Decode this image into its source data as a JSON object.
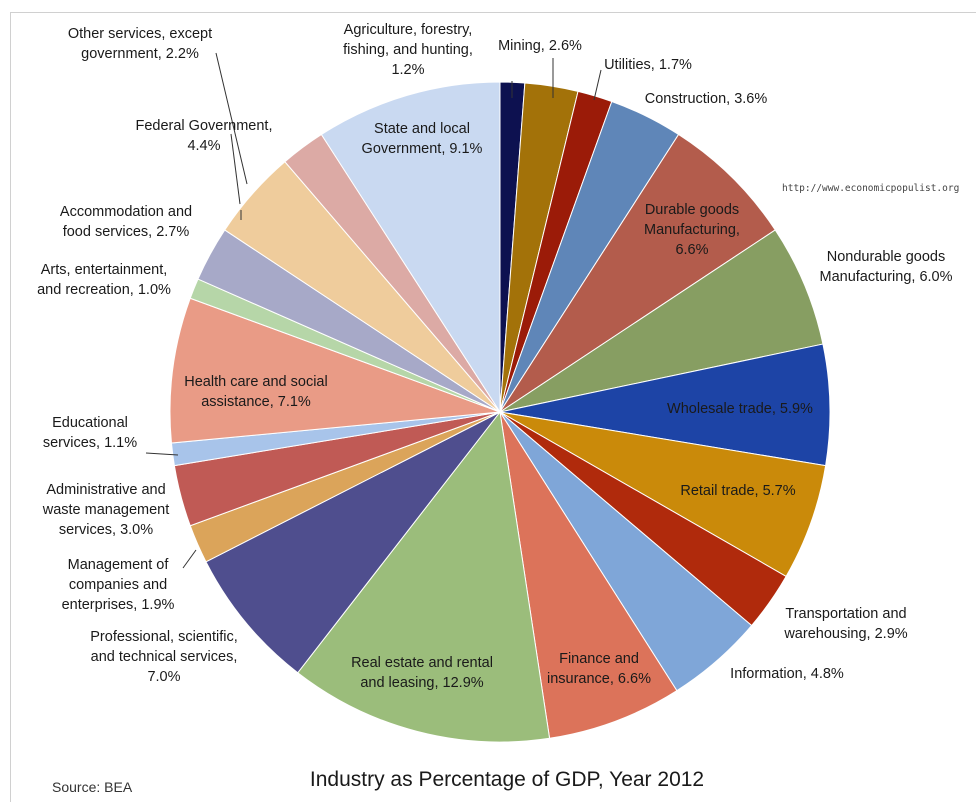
{
  "chart_data": {
    "type": "pie",
    "title": "Industry as Percentage of GDP, Year 2012",
    "source": "Source: BEA",
    "website": "http://www.economicpopulist.org",
    "slices": [
      {
        "label": [
          "Agriculture, forestry,",
          "fishing, and hunting,",
          "1.2%"
        ],
        "value": 1.2,
        "color": "#0d1150"
      },
      {
        "label": [
          "Mining, 2.6%"
        ],
        "value": 2.6,
        "color": "#a37209"
      },
      {
        "label": [
          "Utilities, 1.7%"
        ],
        "value": 1.7,
        "color": "#9b1b08"
      },
      {
        "label": [
          "Construction, 3.6%"
        ],
        "value": 3.6,
        "color": "#5f86b8"
      },
      {
        "label": [
          "Durable goods",
          "Manufacturing,",
          "6.6%"
        ],
        "value": 6.6,
        "color": "#b35c4c"
      },
      {
        "label": [
          "Nondurable goods",
          "Manufacturing, 6.0%"
        ],
        "value": 6.0,
        "color": "#879e62"
      },
      {
        "label": [
          "Wholesale trade, 5.9%"
        ],
        "value": 5.9,
        "color": "#1d44a6"
      },
      {
        "label": [
          "Retail trade, 5.7%"
        ],
        "value": 5.7,
        "color": "#ca8a0a"
      },
      {
        "label": [
          "Transportation and",
          "warehousing, 2.9%"
        ],
        "value": 2.9,
        "color": "#b02a0c"
      },
      {
        "label": [
          "Information, 4.8%"
        ],
        "value": 4.8,
        "color": "#7fa6d8"
      },
      {
        "label": [
          "Finance and",
          "insurance, 6.6%"
        ],
        "value": 6.6,
        "color": "#dc735a"
      },
      {
        "label": [
          "Real estate and rental",
          "and leasing, 12.9%"
        ],
        "value": 12.9,
        "color": "#9bbd7b"
      },
      {
        "label": [
          "Professional, scientific,",
          "and technical services,",
          "7.0%"
        ],
        "value": 7.0,
        "color": "#4f4e8e"
      },
      {
        "label": [
          "Management of",
          "companies and",
          "enterprises, 1.9%"
        ],
        "value": 1.9,
        "color": "#dba45a"
      },
      {
        "label": [
          "Administrative and",
          "waste management",
          "services, 3.0%"
        ],
        "value": 3.0,
        "color": "#c05a55"
      },
      {
        "label": [
          "Educational",
          "services, 1.1%"
        ],
        "value": 1.1,
        "color": "#a8c4ea"
      },
      {
        "label": [
          "Health care and social",
          "assistance, 7.1%"
        ],
        "value": 7.1,
        "color": "#e99b86"
      },
      {
        "label": [
          "Arts, entertainment,",
          "and recreation, 1.0%"
        ],
        "value": 1.0,
        "color": "#b6d6a8"
      },
      {
        "label": [
          "Accommodation and",
          "food services, 2.7%"
        ],
        "value": 2.7,
        "color": "#a7a9c8"
      },
      {
        "label": [
          "Federal Government,",
          "4.4%"
        ],
        "value": 4.4,
        "color": "#efcc9c"
      },
      {
        "label": [
          "Other services, except",
          "government, 2.2%"
        ],
        "value": 2.2,
        "color": "#dcaaa5"
      },
      {
        "label": [
          "State and local",
          "Government, 9.1%"
        ],
        "value": 9.1,
        "color": "#c9d9f1"
      }
    ]
  }
}
